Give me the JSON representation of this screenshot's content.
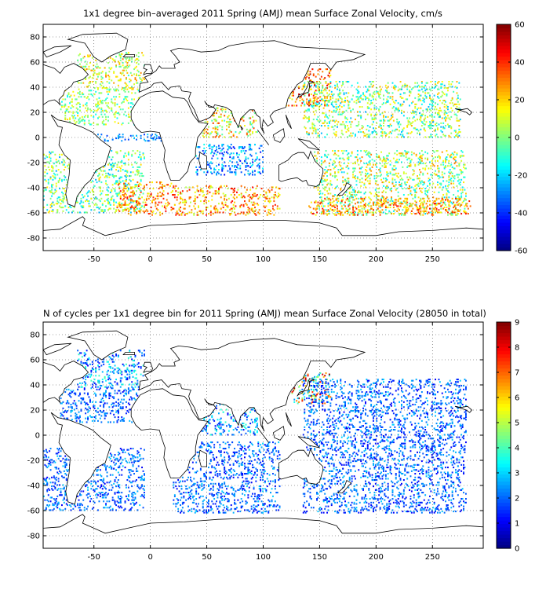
{
  "chart_data": [
    {
      "type": "heatmap",
      "title": "1x1 degree bin–averaged 2011 Spring (AMJ) mean Surface Zonal Velocity, cm/s",
      "x_ticks": [
        -50,
        0,
        50,
        100,
        150,
        200,
        250
      ],
      "y_ticks": [
        80,
        60,
        40,
        20,
        0,
        -20,
        -40,
        -60,
        -80
      ],
      "xlim": [
        -95,
        295
      ],
      "ylim": [
        -90,
        90
      ],
      "grid": true,
      "colorbar": {
        "ticks": [
          60,
          40,
          20,
          0,
          -20,
          -40,
          -60
        ],
        "range": [
          -60,
          60
        ],
        "colormap": "jet"
      },
      "regions": [
        {
          "lon": [
            -65,
            -5
          ],
          "lat": [
            38,
            68
          ],
          "v": [
            -10,
            30
          ]
        },
        {
          "lon": [
            -80,
            -10
          ],
          "lat": [
            10,
            38
          ],
          "v": [
            -15,
            20
          ]
        },
        {
          "lon": [
            -95,
            -5
          ],
          "lat": [
            -60,
            -10
          ],
          "v": [
            -25,
            20
          ]
        },
        {
          "lon": [
            -50,
            10
          ],
          "lat": [
            -3,
            3
          ],
          "v": [
            -40,
            -20
          ]
        },
        {
          "lon": [
            -30,
            20
          ],
          "lat": [
            -62,
            -35
          ],
          "v": [
            10,
            45
          ]
        },
        {
          "lon": [
            20,
            115
          ],
          "lat": [
            -62,
            -38
          ],
          "v": [
            5,
            45
          ]
        },
        {
          "lon": [
            40,
            100
          ],
          "lat": [
            -30,
            -5
          ],
          "v": [
            -45,
            -10
          ]
        },
        {
          "lon": [
            45,
            95
          ],
          "lat": [
            0,
            25
          ],
          "v": [
            -10,
            40
          ]
        },
        {
          "lon": [
            120,
            160
          ],
          "lat": [
            25,
            55
          ],
          "v": [
            10,
            55
          ]
        },
        {
          "lon": [
            135,
            275
          ],
          "lat": [
            0,
            45
          ],
          "v": [
            -25,
            25
          ]
        },
        {
          "lon": [
            145,
            280
          ],
          "lat": [
            -62,
            -10
          ],
          "v": [
            -20,
            30
          ]
        },
        {
          "lon": [
            140,
            285
          ],
          "lat": [
            -62,
            -48
          ],
          "v": [
            15,
            45
          ]
        }
      ]
    },
    {
      "type": "heatmap",
      "title": "N of cycles per 1x1 degree bin for 2011 Spring (AMJ) mean Surface Zonal Velocity (28050 in total)",
      "x_ticks": [
        -50,
        0,
        50,
        100,
        150,
        200,
        250
      ],
      "y_ticks": [
        80,
        60,
        40,
        20,
        0,
        -20,
        -40,
        -60,
        -80
      ],
      "xlim": [
        -95,
        295
      ],
      "ylim": [
        -90,
        90
      ],
      "grid": true,
      "colorbar": {
        "ticks": [
          9,
          8,
          7,
          6,
          5,
          4,
          3,
          2,
          1,
          0
        ],
        "range": [
          0,
          9
        ],
        "colormap": "jet"
      },
      "regions": [
        {
          "lon": [
            -65,
            -5
          ],
          "lat": [
            38,
            68
          ],
          "v": [
            1,
            4
          ]
        },
        {
          "lon": [
            -80,
            -10
          ],
          "lat": [
            10,
            38
          ],
          "v": [
            1,
            3
          ]
        },
        {
          "lon": [
            -95,
            -5
          ],
          "lat": [
            -60,
            -10
          ],
          "v": [
            1,
            3
          ]
        },
        {
          "lon": [
            20,
            115
          ],
          "lat": [
            -62,
            -5
          ],
          "v": [
            1,
            3
          ]
        },
        {
          "lon": [
            45,
            95
          ],
          "lat": [
            0,
            25
          ],
          "v": [
            1,
            4
          ]
        },
        {
          "lon": [
            125,
            160
          ],
          "lat": [
            25,
            50
          ],
          "v": [
            2,
            9
          ]
        },
        {
          "lon": [
            135,
            280
          ],
          "lat": [
            -62,
            45
          ],
          "v": [
            1,
            3
          ]
        }
      ]
    }
  ]
}
